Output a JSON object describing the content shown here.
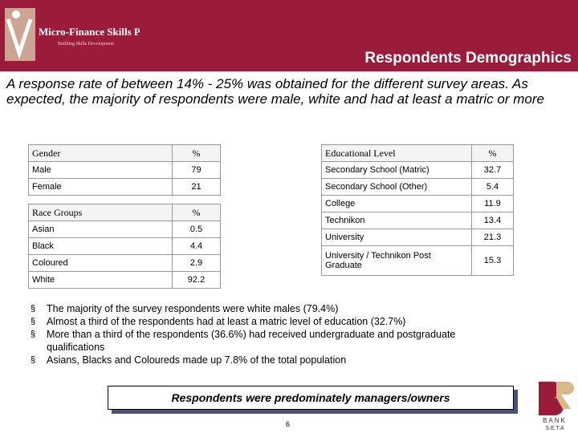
{
  "header": {
    "logo_name": "Micro-Finance Skills Project",
    "logo_tagline": "Building Skills Development",
    "title": "Respondents Demographics",
    "bg_color": "#9b1b3a"
  },
  "intro": "A response rate of between 14% - 25% was obtained for the different survey areas. As expected, the majority of respondents were male, white and had at least a matric or more",
  "gender_table": {
    "header": [
      "Gender",
      "%"
    ],
    "rows": [
      [
        "Male",
        "79"
      ],
      [
        "Female",
        "21"
      ]
    ]
  },
  "race_table": {
    "header": [
      "Race Groups",
      "%"
    ],
    "rows": [
      [
        "Asian",
        "0.5"
      ],
      [
        "Black",
        "4.4"
      ],
      [
        "Coloured",
        "2.9"
      ],
      [
        "White",
        "92.2"
      ]
    ]
  },
  "education_table": {
    "header": [
      "Educational Level",
      "%"
    ],
    "rows": [
      [
        "Secondary School (Matric)",
        "32.7"
      ],
      [
        "Secondary School (Other)",
        "5.4"
      ],
      [
        "College",
        "11.9"
      ],
      [
        "Technikon",
        "13.4"
      ],
      [
        "University",
        "21.3"
      ],
      [
        "University / Technikon Post Graduate",
        "15.3"
      ]
    ]
  },
  "bullets": [
    "The majority of the survey respondents were white males (79.4%)",
    "Almost a third of the respondents had at least a matric level of education (32.7%)",
    "More than a third of the respondents (36.6%) had received undergraduate and postgraduate qualifications",
    "Asians, Blacks and Coloureds made up 7.8% of the total population"
  ],
  "callout": "Respondents were predominately managers/owners",
  "page_number": "6",
  "bank_logo": {
    "letters": "BANK",
    "sub": "S.E.T.A"
  }
}
